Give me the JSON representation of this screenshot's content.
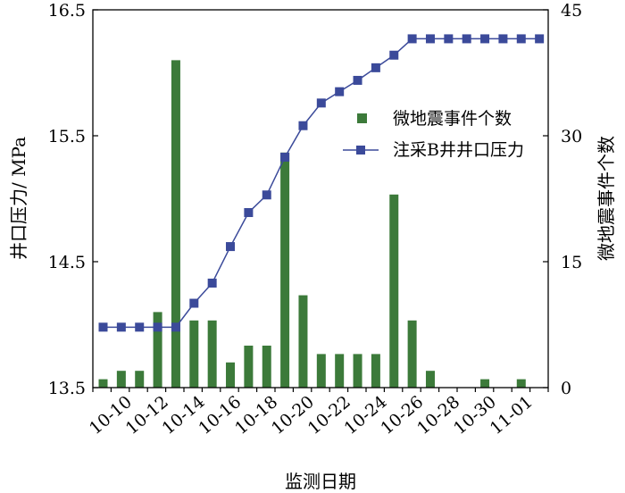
{
  "chart_data": {
    "type": "bar+line",
    "x_axis": {
      "title": "监测日期",
      "tick_labels": [
        "10-10",
        "10-12",
        "10-14",
        "10-16",
        "10-18",
        "10-20",
        "10-22",
        "10-24",
        "10-26",
        "10-28",
        "10-30",
        "11-01"
      ],
      "dates": [
        "10-09",
        "10-10",
        "10-11",
        "10-12",
        "10-13",
        "10-14",
        "10-15",
        "10-16",
        "10-17",
        "10-18",
        "10-19",
        "10-20",
        "10-21",
        "10-22",
        "10-23",
        "10-24",
        "10-25",
        "10-26",
        "10-27",
        "10-28",
        "10-29",
        "10-30",
        "10-31",
        "11-01",
        "11-02"
      ]
    },
    "y_left": {
      "title": "井口压力/ MPa",
      "range": [
        13.5,
        16.5
      ],
      "ticks": [
        13.5,
        14.5,
        15.5,
        16.5
      ],
      "tick_labels": [
        "13.5",
        "14.5",
        "15.5",
        "16.5"
      ]
    },
    "y_right": {
      "title": "微地震事件个数",
      "range": [
        0,
        45
      ],
      "ticks": [
        0,
        15,
        30,
        45
      ],
      "tick_labels": [
        "0",
        "15",
        "30",
        "45"
      ]
    },
    "legend": {
      "placement": "right-middle",
      "entries": [
        "微地震事件个数",
        "注采B井井口压力"
      ]
    },
    "series": [
      {
        "name": "微地震事件个数",
        "kind": "bar",
        "axis": "right",
        "color": "#3c7a3a",
        "x": [
          "10-09",
          "10-10",
          "10-11",
          "10-12",
          "10-13",
          "10-14",
          "10-15",
          "10-16",
          "10-17",
          "10-18",
          "10-19",
          "10-20",
          "10-21",
          "10-22",
          "10-23",
          "10-24",
          "10-25",
          "10-26",
          "10-27",
          "10-28",
          "10-29",
          "10-30",
          "10-31",
          "11-01"
        ],
        "values": [
          1,
          2,
          2,
          9,
          39,
          8,
          8,
          3,
          5,
          5,
          28,
          11,
          4,
          4,
          4,
          4,
          23,
          8,
          2,
          0,
          0,
          1,
          0,
          1
        ]
      },
      {
        "name": "注采B井井口压力",
        "kind": "line",
        "axis": "left",
        "color": "#3b4a9a",
        "x": [
          "10-09",
          "10-10",
          "10-11",
          "10-12",
          "10-13",
          "10-14",
          "10-15",
          "10-16",
          "10-17",
          "10-18",
          "10-19",
          "10-20",
          "10-21",
          "10-22",
          "10-23",
          "10-24",
          "10-25",
          "10-26",
          "10-27",
          "10-28",
          "10-29",
          "10-30",
          "10-31",
          "11-01",
          "11-02"
        ],
        "values": [
          13.98,
          13.98,
          13.98,
          13.98,
          13.98,
          14.17,
          14.33,
          14.62,
          14.89,
          15.03,
          15.33,
          15.58,
          15.76,
          15.85,
          15.94,
          16.04,
          16.14,
          16.27,
          16.27,
          16.27,
          16.27,
          16.27,
          16.27,
          16.27,
          16.27
        ]
      }
    ]
  }
}
